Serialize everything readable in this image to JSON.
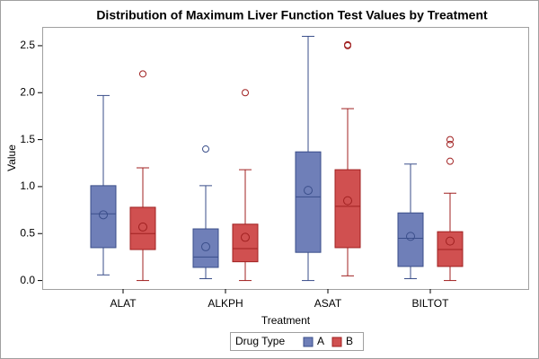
{
  "chart_data": {
    "type": "box",
    "title": "Distribution of Maximum Liver Function Test Values by Treatment",
    "x_label": "Treatment",
    "y_label": "Value",
    "categories": [
      "ALAT",
      "ALKPH",
      "ASAT",
      "BILTOT"
    ],
    "legend_title": "Drug Type",
    "ylim": [
      -0.09,
      2.7
    ],
    "yticks": [
      {
        "value": 0,
        "label": "0.0"
      },
      0.5,
      {
        "value": 1,
        "label": "1.0"
      },
      1.5,
      {
        "value": 2,
        "label": "2.0"
      },
      2.5
    ],
    "series": [
      {
        "name": "A",
        "color": "#6f7fb8",
        "stroke": "#3a4e8a",
        "low": [
          0.06,
          0.02,
          0.0,
          0.02
        ],
        "q1": [
          0.35,
          0.14,
          0.3,
          0.15
        ],
        "median": [
          0.71,
          0.25,
          0.89,
          0.45
        ],
        "q3": [
          1.01,
          0.55,
          1.37,
          0.72
        ],
        "high": [
          1.97,
          1.01,
          2.6,
          1.24
        ],
        "mean": [
          0.7,
          0.36,
          0.96,
          0.47
        ],
        "outliers": [
          [],
          [
            1.4
          ],
          [],
          []
        ]
      },
      {
        "name": "B",
        "color": "#d05050",
        "stroke": "#a02020",
        "low": [
          0.0,
          0.0,
          0.05,
          0.0
        ],
        "q1": [
          0.33,
          0.2,
          0.35,
          0.15
        ],
        "median": [
          0.5,
          0.34,
          0.79,
          0.33
        ],
        "q3": [
          0.78,
          0.6,
          1.18,
          0.52
        ],
        "high": [
          1.2,
          1.18,
          1.83,
          0.93
        ],
        "mean": [
          0.57,
          0.46,
          0.85,
          0.42
        ],
        "outliers": [
          [
            2.2
          ],
          [
            2.0
          ],
          [
            2.51,
            2.5
          ],
          [
            1.5,
            1.45,
            1.27
          ]
        ]
      }
    ]
  }
}
